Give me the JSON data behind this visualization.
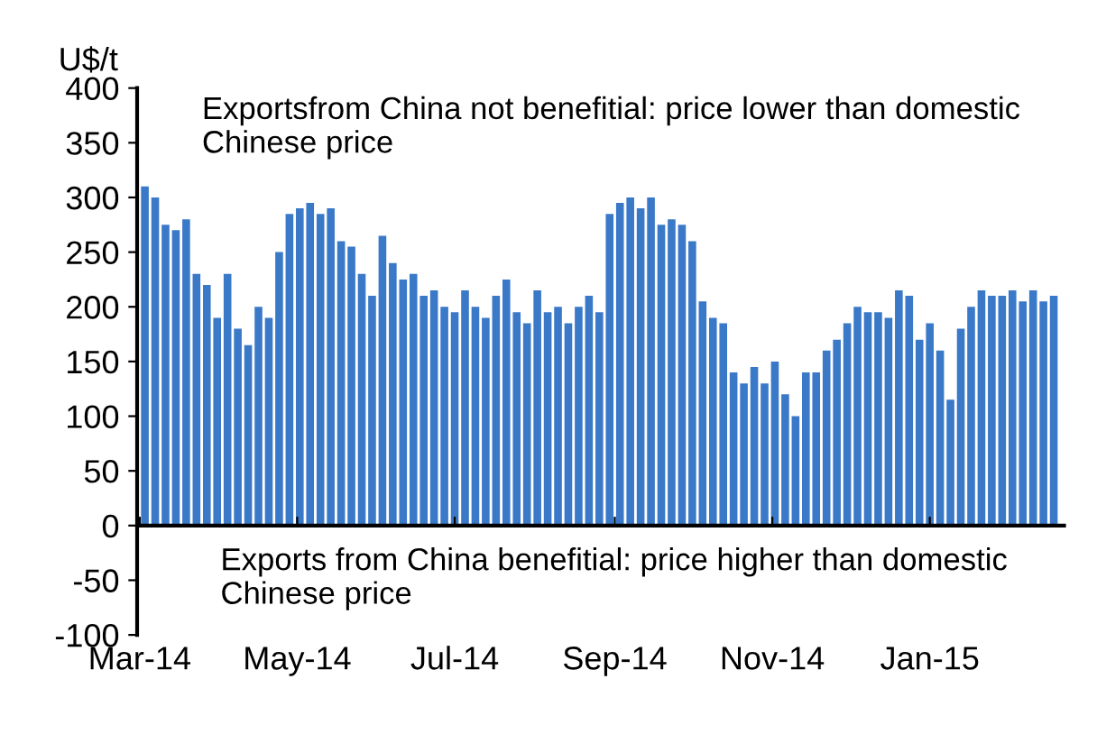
{
  "chart_data": {
    "type": "bar",
    "ylabel": "U$/t",
    "x": [
      "2014-03-03",
      "2014-03-07",
      "2014-03-11",
      "2014-03-15",
      "2014-03-19",
      "2014-03-23",
      "2014-03-27",
      "2014-03-31",
      "2014-04-04",
      "2014-04-08",
      "2014-04-12",
      "2014-04-16",
      "2014-04-20",
      "2014-04-24",
      "2014-04-28",
      "2014-05-02",
      "2014-05-06",
      "2014-05-10",
      "2014-05-14",
      "2014-05-18",
      "2014-05-22",
      "2014-05-26",
      "2014-05-30",
      "2014-06-03",
      "2014-06-07",
      "2014-06-11",
      "2014-06-15",
      "2014-06-19",
      "2014-06-23",
      "2014-06-27",
      "2014-07-01",
      "2014-07-05",
      "2014-07-09",
      "2014-07-13",
      "2014-07-17",
      "2014-07-21",
      "2014-07-25",
      "2014-07-29",
      "2014-08-02",
      "2014-08-06",
      "2014-08-10",
      "2014-08-14",
      "2014-08-18",
      "2014-08-22",
      "2014-08-26",
      "2014-08-30",
      "2014-09-03",
      "2014-09-07",
      "2014-09-11",
      "2014-09-15",
      "2014-09-19",
      "2014-09-23",
      "2014-09-27",
      "2014-10-01",
      "2014-10-05",
      "2014-10-09",
      "2014-10-13",
      "2014-10-17",
      "2014-10-21",
      "2014-10-25",
      "2014-10-29",
      "2014-11-02",
      "2014-11-06",
      "2014-11-10",
      "2014-11-14",
      "2014-11-18",
      "2014-11-22",
      "2014-11-26",
      "2014-11-30",
      "2014-12-04",
      "2014-12-08",
      "2014-12-12",
      "2014-12-16",
      "2014-12-20",
      "2014-12-24",
      "2014-12-28",
      "2015-01-01",
      "2015-01-05",
      "2015-01-09",
      "2015-01-13",
      "2015-01-17",
      "2015-01-21",
      "2015-01-25",
      "2015-01-29",
      "2015-02-02",
      "2015-02-06",
      "2015-02-10",
      "2015-02-14",
      "2015-02-18"
    ],
    "values": [
      310,
      300,
      275,
      270,
      280,
      230,
      220,
      190,
      230,
      180,
      165,
      200,
      190,
      250,
      285,
      290,
      295,
      285,
      290,
      260,
      255,
      230,
      210,
      265,
      240,
      225,
      230,
      210,
      215,
      200,
      195,
      215,
      200,
      190,
      210,
      225,
      195,
      185,
      215,
      195,
      200,
      185,
      200,
      210,
      195,
      285,
      295,
      300,
      290,
      300,
      275,
      280,
      275,
      260,
      205,
      190,
      185,
      140,
      130,
      145,
      130,
      150,
      120,
      100,
      140,
      140,
      160,
      170,
      185,
      200,
      195,
      195,
      190,
      215,
      210,
      170,
      185,
      160,
      115,
      180,
      200,
      215,
      210,
      210,
      215,
      205,
      215,
      205,
      210
    ],
    "color": "#3a78c8",
    "xlim": [
      "2014-02-28",
      "2015-02-22"
    ],
    "xticks": [
      {
        "value": "2014-03-01",
        "label": "Mar-14"
      },
      {
        "value": "2014-05-01",
        "label": "May-14"
      },
      {
        "value": "2014-07-01",
        "label": "Jul-14"
      },
      {
        "value": "2014-09-01",
        "label": "Sep-14"
      },
      {
        "value": "2014-11-01",
        "label": "Nov-14"
      },
      {
        "value": "2015-01-01",
        "label": "Jan-15"
      }
    ],
    "ylim": [
      -100,
      400
    ],
    "yticks": [
      -100,
      -50,
      0,
      50,
      100,
      150,
      200,
      250,
      300,
      350,
      400
    ],
    "annotations": [
      "Exportsfrom China not benefitial: price lower than domestic Chinese price",
      "Exports from China benefitial: price higher than domestic Chinese price"
    ],
    "legend": false
  }
}
